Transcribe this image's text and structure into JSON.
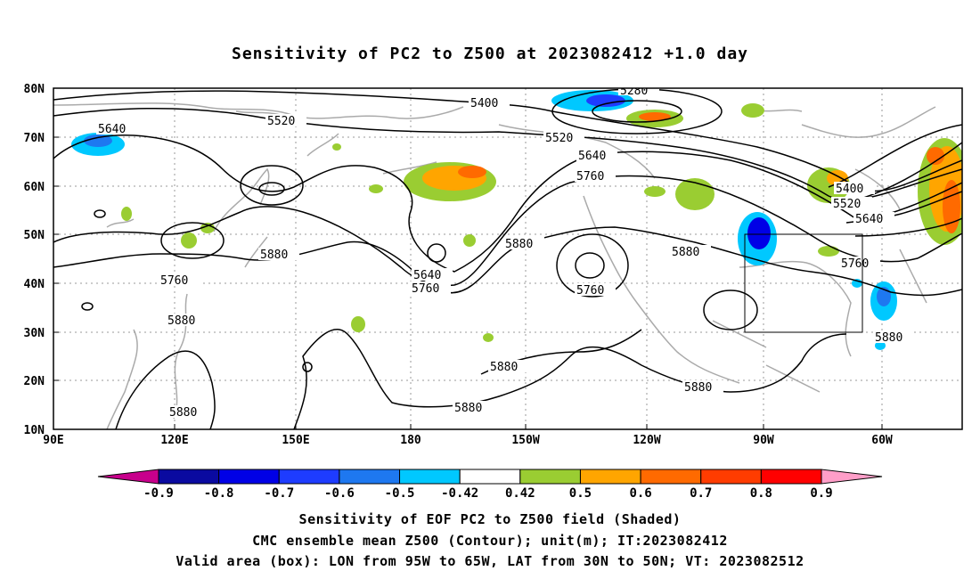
{
  "title": "Sensitivity of PC2 to Z500 at 2023082412 +1.0 day",
  "map": {
    "lat_labels": [
      "80N",
      "70N",
      "60N",
      "50N",
      "40N",
      "30N",
      "20N",
      "10N"
    ],
    "lon_labels": [
      "90E",
      "120E",
      "150E",
      "180",
      "150W",
      "120W",
      "90W",
      "60W"
    ],
    "valid_box": {
      "lon_range": [
        "95W",
        "65W"
      ],
      "lat_range": [
        "30N",
        "50N"
      ]
    }
  },
  "contour_labels": {
    "l5640_nw": "5640",
    "l5520_n": "5520",
    "l5400_n": "5400",
    "l5280": "5280",
    "l5520_c": "5520",
    "l5640_c": "5640",
    "l5760_c": "5760",
    "l5880_c": "5880",
    "l5880_e": "5880",
    "l5880_w": "5880",
    "l5760_w": "5760",
    "l5880_sw": "5880",
    "l5640_pac": "5640",
    "l5760_pac": "5760",
    "l5760_low": "5760",
    "l5880_s1": "5880",
    "l5880_s2": "5880",
    "l5880_s3": "5880",
    "l5880_se": "5880",
    "l5880_sw2": "5880",
    "l5400_e": "5400",
    "l5520_e": "5520",
    "l5640_e": "5640",
    "l5760_e": "5760"
  },
  "colorbar": {
    "labels": [
      "-0.9",
      "-0.8",
      "-0.7",
      "-0.6",
      "-0.5",
      "-0.42",
      "0.42",
      "0.5",
      "0.6",
      "0.7",
      "0.8",
      "0.9"
    ],
    "colors": [
      "#0a0aa0",
      "#0000e6",
      "#1e3cff",
      "#1e78f0",
      "#00c8ff",
      "#ffffff",
      "#9acd32",
      "#ffa500",
      "#ff6a00",
      "#ff3c00",
      "#ff0000"
    ],
    "end_low_color": "#c8008c",
    "end_high_color": "#ff9ec8"
  },
  "caption": {
    "line1": "Sensitivity of EOF PC2 to Z500 field (Shaded)",
    "line2": "CMC ensemble mean Z500 (Contour); unit(m); IT:2023082412",
    "line3": "Valid area (box): LON from 95W to 65W, LAT from 30N to 50N; VT: 2023082512"
  }
}
